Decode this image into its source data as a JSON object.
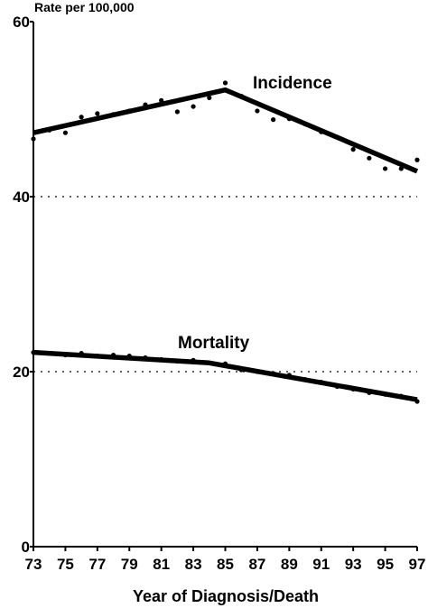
{
  "chart_data": {
    "type": "line",
    "ylabel": "Rate per 100,000",
    "xlabel": "Year of Diagnosis/Death",
    "xlim": [
      73,
      97
    ],
    "ylim": [
      0,
      60
    ],
    "x_ticks": [
      "73",
      "75",
      "77",
      "79",
      "81",
      "83",
      "85",
      "87",
      "89",
      "91",
      "93",
      "95",
      "97"
    ],
    "y_ticks": [
      "0",
      "20",
      "40",
      "60"
    ],
    "reference_lines": [
      20,
      40
    ],
    "series": [
      {
        "name": "Incidence",
        "trend": [
          [
            73,
            47.3
          ],
          [
            85,
            52.2
          ],
          [
            97,
            42.9
          ]
        ],
        "points": [
          [
            73,
            46.6
          ],
          [
            74,
            47.6
          ],
          [
            75,
            47.3
          ],
          [
            76,
            49.1
          ],
          [
            77,
            49.5
          ],
          [
            78,
            49.4
          ],
          [
            79,
            49.8
          ],
          [
            80,
            50.5
          ],
          [
            81,
            51.0
          ],
          [
            82,
            49.7
          ],
          [
            83,
            50.3
          ],
          [
            84,
            51.3
          ],
          [
            85,
            53.0
          ],
          [
            86,
            51.5
          ],
          [
            87,
            49.8
          ],
          [
            88,
            48.8
          ],
          [
            89,
            48.9
          ],
          [
            90,
            48.3
          ],
          [
            91,
            47.4
          ],
          [
            92,
            46.8
          ],
          [
            93,
            45.4
          ],
          [
            94,
            44.4
          ],
          [
            95,
            43.2
          ],
          [
            96,
            43.2
          ],
          [
            97,
            44.2
          ]
        ]
      },
      {
        "name": "Mortality",
        "trend": [
          [
            73,
            22.2
          ],
          [
            84,
            21.0
          ],
          [
            97,
            16.8
          ]
        ],
        "points": [
          [
            73,
            22.2
          ],
          [
            74,
            22.1
          ],
          [
            75,
            21.9
          ],
          [
            76,
            22.1
          ],
          [
            77,
            21.8
          ],
          [
            78,
            21.9
          ],
          [
            79,
            21.8
          ],
          [
            80,
            21.6
          ],
          [
            81,
            21.4
          ],
          [
            82,
            21.2
          ],
          [
            83,
            21.3
          ],
          [
            84,
            21.0
          ],
          [
            85,
            20.9
          ],
          [
            86,
            20.2
          ],
          [
            87,
            20.0
          ],
          [
            88,
            19.8
          ],
          [
            89,
            19.6
          ],
          [
            90,
            19.1
          ],
          [
            91,
            18.8
          ],
          [
            92,
            18.3
          ],
          [
            93,
            18.0
          ],
          [
            94,
            17.6
          ],
          [
            95,
            17.4
          ],
          [
            96,
            17.2
          ],
          [
            97,
            16.6
          ]
        ]
      }
    ]
  }
}
